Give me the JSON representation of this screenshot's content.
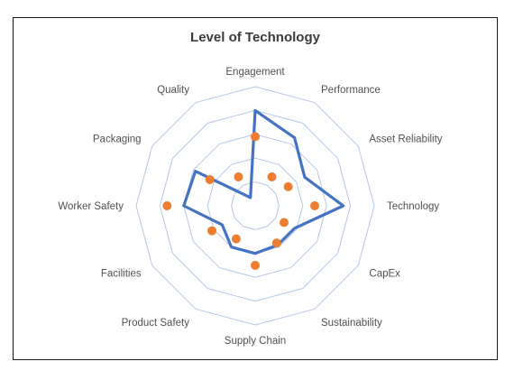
{
  "chart_data": {
    "type": "radar",
    "title": "Level of Technology",
    "categories": [
      "Engagement",
      "Performance",
      "Asset Reliability",
      "Technology",
      "CapEx",
      "Sustainability",
      "Supply Chain",
      "Product Safety",
      "Facilities",
      "Worker Safety",
      "Packaging",
      "Quality"
    ],
    "rlim": [
      0,
      5
    ],
    "grid_rings": 5,
    "series": [
      {
        "style": "line",
        "color": "#4472C4",
        "values": [
          4.0,
          3.3,
          2.4,
          3.7,
          1.9,
          1.9,
          2.0,
          2.0,
          1.6,
          3.0,
          2.9,
          0.4
        ]
      },
      {
        "style": "markers",
        "color": "#ED7D31",
        "values": [
          2.9,
          1.4,
          1.6,
          2.5,
          1.4,
          1.8,
          2.5,
          1.6,
          2.1,
          3.7,
          2.2,
          1.4
        ]
      }
    ]
  }
}
